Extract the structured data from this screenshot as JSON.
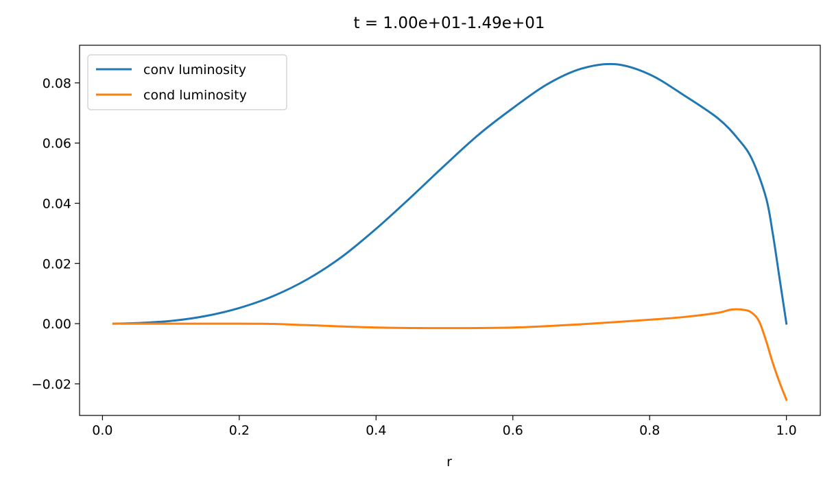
{
  "chart_data": {
    "type": "line",
    "title": "t = 1.00e+01-1.49e+01",
    "xlabel": "r",
    "ylabel": "",
    "xlim": [
      -0.0335,
      1.0495
    ],
    "ylim": [
      -0.0305,
      0.0925
    ],
    "xticks": [
      0.0,
      0.2,
      0.4,
      0.6,
      0.8,
      1.0
    ],
    "xtick_labels": [
      "0.0",
      "0.2",
      "0.4",
      "0.6",
      "0.8",
      "1.0"
    ],
    "yticks": [
      -0.02,
      0.0,
      0.02,
      0.04,
      0.06,
      0.08
    ],
    "ytick_labels": [
      "−0.02",
      "0.00",
      "0.02",
      "0.04",
      "0.06",
      "0.08"
    ],
    "grid": false,
    "legend_position": "top-left",
    "colors": {
      "conv": "#1f77b4",
      "cond": "#ff7f0e"
    },
    "series": [
      {
        "name": "conv luminosity",
        "x": [
          0.016,
          0.05,
          0.1,
          0.15,
          0.2,
          0.25,
          0.3,
          0.35,
          0.4,
          0.45,
          0.5,
          0.55,
          0.6,
          0.65,
          0.7,
          0.75,
          0.8,
          0.85,
          0.9,
          0.93,
          0.95,
          0.97,
          0.98,
          0.99,
          1.0
        ],
        "y": [
          0.0,
          0.0002,
          0.0009,
          0.0025,
          0.0052,
          0.0092,
          0.0148,
          0.0222,
          0.0315,
          0.0418,
          0.0525,
          0.0628,
          0.0716,
          0.0795,
          0.0847,
          0.0862,
          0.0828,
          0.0759,
          0.0682,
          0.0612,
          0.0545,
          0.042,
          0.03,
          0.015,
          0.0
        ]
      },
      {
        "name": "cond luminosity",
        "x": [
          0.016,
          0.1,
          0.2,
          0.25,
          0.3,
          0.4,
          0.5,
          0.6,
          0.7,
          0.8,
          0.85,
          0.9,
          0.92,
          0.94,
          0.95,
          0.96,
          0.97,
          0.98,
          0.99,
          1.0
        ],
        "y": [
          0.0,
          0.0,
          0.0,
          -0.0001,
          -0.0005,
          -0.0013,
          -0.0015,
          -0.0013,
          -0.0002,
          0.0013,
          0.0022,
          0.0036,
          0.0047,
          0.0045,
          0.0035,
          0.0008,
          -0.0055,
          -0.013,
          -0.0195,
          -0.0253
        ]
      }
    ]
  }
}
